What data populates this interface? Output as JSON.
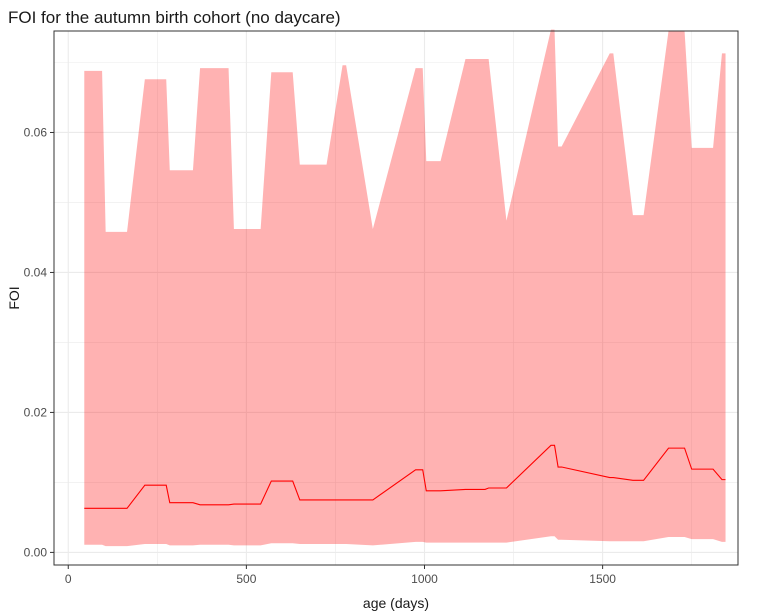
{
  "chart_data": {
    "type": "area",
    "title": "FOI for the autumn birth cohort (no daycare)",
    "xlabel": "age (days)",
    "ylabel": "FOI",
    "xlim": [
      -40,
      1880
    ],
    "ylim": [
      -0.0018,
      0.0745
    ],
    "x_ticks": [
      0,
      500,
      1000,
      1500
    ],
    "y_ticks": [
      0.0,
      0.02,
      0.04,
      0.06
    ],
    "x_tick_labels": [
      "0",
      "500",
      "1000",
      "1500"
    ],
    "y_tick_labels": [
      "0.00",
      "0.02",
      "0.04",
      "0.06"
    ],
    "grid": true,
    "legend": "none",
    "colors": {
      "ribbon": "#ff0000",
      "ribbon_opacity": 0.3,
      "line": "#ff0000",
      "grid": "#ebebeb",
      "border": "#333333"
    },
    "series": [
      {
        "label": "upper",
        "x": [
          45,
          95,
          105,
          165,
          215,
          275,
          285,
          350,
          370,
          450,
          465,
          540,
          570,
          630,
          650,
          725,
          770,
          780,
          855,
          975,
          995,
          1005,
          1045,
          1115,
          1170,
          1180,
          1230,
          1355,
          1365,
          1375,
          1385,
          1520,
          1530,
          1585,
          1615,
          1685,
          1705,
          1730,
          1750,
          1800,
          1810,
          1835,
          1845
        ],
        "y": [
          0.0688,
          0.0688,
          0.0458,
          0.0458,
          0.0676,
          0.0676,
          0.0546,
          0.0546,
          0.0692,
          0.0692,
          0.0462,
          0.0462,
          0.0686,
          0.0686,
          0.0554,
          0.0554,
          0.0696,
          0.0696,
          0.0462,
          0.0692,
          0.0692,
          0.0559,
          0.0559,
          0.0705,
          0.0705,
          0.0705,
          0.0474,
          0.0747,
          0.0747,
          0.058,
          0.058,
          0.0713,
          0.0713,
          0.0482,
          0.0482,
          0.0745,
          0.0745,
          0.0745,
          0.0578,
          0.0578,
          0.0578,
          0.0713,
          0.0713
        ]
      },
      {
        "label": "lower",
        "x": [
          45,
          95,
          105,
          165,
          215,
          275,
          285,
          350,
          370,
          450,
          465,
          540,
          570,
          630,
          650,
          725,
          770,
          780,
          855,
          975,
          995,
          1005,
          1045,
          1115,
          1170,
          1180,
          1230,
          1355,
          1365,
          1375,
          1385,
          1520,
          1530,
          1585,
          1615,
          1685,
          1705,
          1730,
          1750,
          1800,
          1810,
          1835,
          1845
        ],
        "y": [
          0.0011,
          0.0011,
          0.0009,
          0.0009,
          0.0012,
          0.0012,
          0.001,
          0.001,
          0.0011,
          0.0011,
          0.001,
          0.001,
          0.0013,
          0.0013,
          0.0012,
          0.0012,
          0.0012,
          0.0012,
          0.001,
          0.0015,
          0.0015,
          0.0014,
          0.0014,
          0.0014,
          0.0014,
          0.0014,
          0.0014,
          0.0023,
          0.0023,
          0.0018,
          0.0018,
          0.0016,
          0.0016,
          0.0016,
          0.0016,
          0.0022,
          0.0022,
          0.0022,
          0.0019,
          0.0019,
          0.0019,
          0.0015,
          0.0015
        ]
      },
      {
        "label": "estimate",
        "x": [
          45,
          95,
          105,
          165,
          215,
          275,
          285,
          350,
          370,
          450,
          465,
          540,
          570,
          630,
          650,
          725,
          770,
          780,
          855,
          975,
          995,
          1005,
          1045,
          1115,
          1170,
          1180,
          1230,
          1355,
          1365,
          1375,
          1385,
          1520,
          1530,
          1585,
          1615,
          1685,
          1705,
          1730,
          1750,
          1800,
          1810,
          1835,
          1845
        ],
        "y": [
          0.0063,
          0.0063,
          0.0063,
          0.0063,
          0.0096,
          0.0096,
          0.0071,
          0.0071,
          0.0068,
          0.0068,
          0.0069,
          0.0069,
          0.0102,
          0.0102,
          0.0075,
          0.0075,
          0.0075,
          0.0075,
          0.0075,
          0.0118,
          0.0118,
          0.0088,
          0.0088,
          0.009,
          0.009,
          0.0092,
          0.0092,
          0.0153,
          0.0153,
          0.0122,
          0.0122,
          0.0107,
          0.0107,
          0.0103,
          0.0103,
          0.0149,
          0.0149,
          0.0149,
          0.0119,
          0.0119,
          0.0119,
          0.0104,
          0.0104
        ]
      }
    ]
  }
}
